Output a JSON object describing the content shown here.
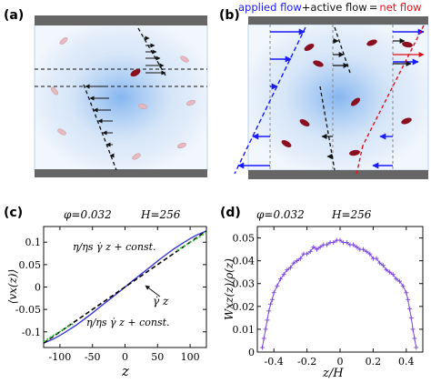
{
  "panels": {
    "a": {
      "label": "(a)"
    },
    "b": {
      "label": "(b)",
      "legend": {
        "applied": "applied flow",
        "plus": "+",
        "active": "active flow",
        "equals": "=",
        "net": "net flow"
      },
      "colors": {
        "applied": "#1a1aff",
        "active": "#111111",
        "net": "#e0101a"
      }
    },
    "c": {
      "label": "(c)",
      "header_phi": "φ=0.032",
      "header_H": "H=256",
      "annotation_upper": "η/ηs γ̇ z + const.",
      "annotation_lower": "η/ηs γ̇ z + const.",
      "annotation_arrow": "γ̇ z"
    },
    "d": {
      "label": "(d)",
      "header_phi": "φ=0.032",
      "header_H": "H=256"
    }
  },
  "chart_data": [
    {
      "type": "line",
      "panel": "c",
      "xlabel": "z",
      "ylabel": "⟨vx(z)⟩",
      "xlim": [
        -125,
        125
      ],
      "ylim": [
        -0.135,
        0.135
      ],
      "xticks": [
        -100,
        -50,
        0,
        50,
        100
      ],
      "yticks": [
        -0.1,
        -0.05,
        0,
        0.05,
        0.1
      ],
      "xtick_labels": [
        "-100",
        "-50",
        "0",
        "50",
        "100"
      ],
      "ytick_labels": [
        "-0.1",
        "-0.05",
        "0",
        "0.05",
        "0.1"
      ],
      "series": [
        {
          "style": "solid",
          "color": "#3a3ad8",
          "x": [
            -125,
            -110,
            -100,
            -90,
            -75,
            -60,
            -50,
            -40,
            -25,
            -10,
            0,
            10,
            25,
            40,
            50,
            60,
            75,
            90,
            100,
            110,
            125
          ],
          "y": [
            -0.125,
            -0.116,
            -0.108,
            -0.099,
            -0.085,
            -0.069,
            -0.058,
            -0.046,
            -0.029,
            -0.012,
            0,
            0.012,
            0.029,
            0.046,
            0.058,
            0.069,
            0.085,
            0.099,
            0.108,
            0.116,
            0.125
          ]
        },
        {
          "style": "dashed",
          "color": "#000000",
          "x": [
            -125,
            125
          ],
          "y": [
            -0.125,
            0.125
          ]
        },
        {
          "style": "dotted",
          "color": "#33cc33",
          "x": [
            -125,
            -110,
            -95,
            -80
          ],
          "y": [
            -0.122,
            -0.108,
            -0.095,
            -0.082
          ]
        },
        {
          "style": "dotted",
          "color": "#33cc33",
          "x": [
            80,
            95,
            110,
            125
          ],
          "y": [
            0.082,
            0.095,
            0.108,
            0.122
          ]
        }
      ]
    },
    {
      "type": "line",
      "panel": "d",
      "xlabel": "z/H",
      "ylabel": "Wxz(z)/ρ(z)",
      "xlim": [
        -0.5,
        0.5
      ],
      "ylim": [
        0,
        0.055
      ],
      "xticks": [
        -0.4,
        -0.2,
        0,
        0.2,
        0.4
      ],
      "yticks": [
        0,
        0.01,
        0.02,
        0.03,
        0.04,
        0.05
      ],
      "xtick_labels": [
        "-0.4",
        "-0.2",
        "0",
        "0.2",
        "0.4"
      ],
      "ytick_labels": [
        "0",
        "0.01",
        "0.02",
        "0.03",
        "0.04",
        "0.05"
      ],
      "series": [
        {
          "style": "solid-markers",
          "color": "#7a44e0",
          "x": [
            -0.47,
            -0.46,
            -0.45,
            -0.44,
            -0.43,
            -0.42,
            -0.41,
            -0.4,
            -0.38,
            -0.36,
            -0.34,
            -0.32,
            -0.3,
            -0.28,
            -0.26,
            -0.24,
            -0.22,
            -0.2,
            -0.18,
            -0.16,
            -0.14,
            -0.12,
            -0.1,
            -0.08,
            -0.06,
            -0.04,
            -0.02,
            0.0,
            0.02,
            0.04,
            0.06,
            0.08,
            0.1,
            0.12,
            0.14,
            0.16,
            0.18,
            0.2,
            0.22,
            0.24,
            0.26,
            0.28,
            0.3,
            0.32,
            0.34,
            0.36,
            0.38,
            0.4,
            0.41,
            0.42,
            0.43,
            0.44,
            0.45,
            0.46
          ],
          "y": [
            0.002,
            0.006,
            0.01,
            0.014,
            0.018,
            0.021,
            0.023,
            0.026,
            0.029,
            0.032,
            0.034,
            0.036,
            0.037,
            0.039,
            0.04,
            0.041,
            0.043,
            0.043,
            0.044,
            0.046,
            0.045,
            0.046,
            0.047,
            0.047,
            0.048,
            0.048,
            0.049,
            0.049,
            0.048,
            0.048,
            0.047,
            0.047,
            0.046,
            0.045,
            0.045,
            0.044,
            0.043,
            0.041,
            0.041,
            0.039,
            0.038,
            0.036,
            0.035,
            0.034,
            0.032,
            0.031,
            0.029,
            0.026,
            0.023,
            0.019,
            0.015,
            0.01,
            0.006,
            0.002
          ]
        }
      ]
    }
  ]
}
